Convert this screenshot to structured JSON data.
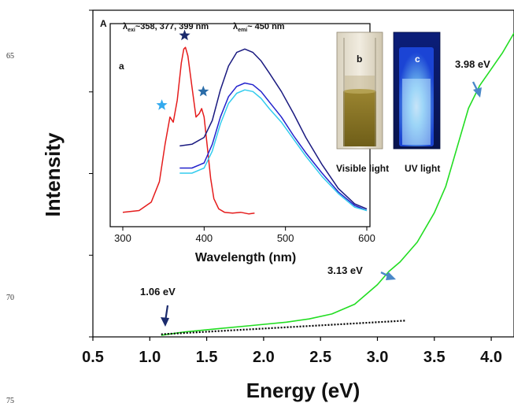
{
  "margin_line_numbers": [
    "65",
    "70",
    "75"
  ],
  "chart_data": [
    {
      "id": "main",
      "type": "line",
      "xlabel": "Energy (eV)",
      "ylabel": "Intensity",
      "xlim": [
        0.5,
        4.2
      ],
      "x_ticks": [
        "0.5",
        "1.0",
        "1.5",
        "2.0",
        "2.5",
        "3.0",
        "3.5",
        "4.0"
      ],
      "ylim": [
        0,
        100
      ],
      "y_tick_labels_shown": false,
      "grid": false,
      "series": [
        {
          "color": "#22dd22",
          "style": "solid",
          "x": [
            1.1,
            1.3,
            1.6,
            1.9,
            2.2,
            2.4,
            2.6,
            2.8,
            2.9,
            3.0,
            3.1,
            3.2,
            3.35,
            3.5,
            3.6,
            3.7,
            3.8,
            3.9,
            4.0,
            4.1,
            4.2
          ],
          "y": [
            0.5,
            1.5,
            2.5,
            3.5,
            4.5,
            5.5,
            7,
            10,
            13,
            16,
            20,
            23,
            29,
            38,
            46,
            58,
            70,
            77,
            82,
            87,
            93
          ]
        },
        {
          "color": "#000000",
          "style": "dotted",
          "x": [
            1.1,
            3.25
          ],
          "y": [
            0.8,
            5
          ]
        }
      ],
      "annotations": [
        "1.06 eV",
        "3.13 eV",
        "3.98 eV"
      ],
      "panel_label": "A"
    },
    {
      "id": "inset",
      "type": "line",
      "panel_label": "a",
      "xlabel": "Wavelength (nm)",
      "xlim": [
        300,
        600
      ],
      "x_ticks": [
        "300",
        "400",
        "500",
        "600"
      ],
      "ylim": [
        0,
        100
      ],
      "excitation_text": {
        "prefix": "λ",
        "sub": "exi",
        "suffix": "~358, 377, 399 nm"
      },
      "emission_text": {
        "prefix": "λ",
        "sub": "emi",
        "suffix": "~ 450 nm"
      },
      "series": [
        {
          "color": "#e51c1c",
          "x": [
            300,
            320,
            335,
            345,
            352,
            358,
            362,
            367,
            372,
            375,
            377,
            380,
            385,
            390,
            394,
            397,
            400,
            404,
            408,
            412,
            418,
            425,
            435,
            445,
            455,
            462
          ],
          "y": [
            2,
            3,
            8,
            20,
            42,
            58,
            55,
            68,
            90,
            98,
            99,
            94,
            76,
            58,
            60,
            63,
            58,
            40,
            22,
            10,
            4,
            2,
            1.5,
            2,
            1,
            1.5
          ]
        },
        {
          "color": "#1a1a80",
          "x": [
            370,
            385,
            400,
            410,
            420,
            430,
            440,
            450,
            460,
            470,
            480,
            495,
            510,
            525,
            545,
            565,
            585,
            600
          ],
          "y": [
            41,
            42,
            46,
            56,
            74,
            88,
            96,
            98,
            96,
            91,
            84,
            73,
            60,
            46,
            30,
            16,
            7,
            4
          ]
        },
        {
          "color": "#2222cc",
          "x": [
            370,
            385,
            400,
            410,
            420,
            430,
            440,
            450,
            460,
            470,
            480,
            495,
            510,
            525,
            545,
            565,
            585,
            600
          ],
          "y": [
            28,
            28,
            31,
            42,
            58,
            70,
            76,
            78,
            77,
            73,
            67,
            58,
            47,
            37,
            25,
            14,
            6,
            3
          ]
        },
        {
          "color": "#33ccee",
          "x": [
            370,
            385,
            400,
            410,
            420,
            430,
            440,
            450,
            460,
            470,
            480,
            495,
            510,
            525,
            545,
            565,
            585,
            600
          ],
          "y": [
            25,
            25,
            28,
            38,
            54,
            66,
            72,
            74,
            73,
            69,
            63,
            55,
            45,
            35,
            23,
            13,
            5,
            3
          ]
        }
      ],
      "star_markers": [
        {
          "x": 348,
          "y": 65,
          "color": "#33aaee"
        },
        {
          "x": 376,
          "y": 106,
          "color": "#1a2a6c"
        },
        {
          "x": 399,
          "y": 73,
          "color": "#2a6ca8"
        }
      ]
    }
  ],
  "photos": {
    "b": {
      "label": "b",
      "caption": "Visible light"
    },
    "c": {
      "label": "c",
      "caption": "UV light"
    }
  }
}
